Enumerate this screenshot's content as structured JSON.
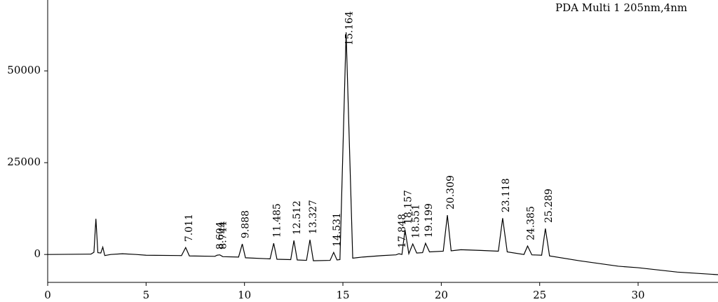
{
  "chart_data": {
    "type": "line",
    "legend_text": "PDA Multi 1 205nm,4nm",
    "color": "#000000",
    "x": [
      0,
      2.2,
      2.35,
      2.45,
      2.55,
      2.7,
      2.8,
      2.9,
      3.2,
      3.8,
      4.5,
      5,
      6.8,
      7.011,
      7.2,
      8.5,
      8.604,
      8.744,
      8.9,
      9.7,
      9.888,
      10.05,
      11.3,
      11.485,
      11.65,
      12.35,
      12.512,
      12.68,
      13.15,
      13.327,
      13.5,
      14.35,
      14.531,
      14.7,
      14.85,
      15.164,
      15.5,
      16,
      17,
      17.7,
      17.848,
      18.0,
      18.157,
      18.35,
      18.551,
      18.75,
      19.05,
      19.199,
      19.4,
      20.1,
      20.309,
      20.5,
      21,
      22,
      22.9,
      23.118,
      23.35,
      24.2,
      24.385,
      24.6,
      25.1,
      25.289,
      25.5,
      27,
      29,
      30,
      32,
      34.06
    ],
    "values": [
      0,
      100,
      600,
      9700,
      500,
      400,
      2000,
      -300,
      0,
      200,
      0,
      -200,
      -300,
      1900,
      -400,
      -500,
      -200,
      -100,
      -600,
      -700,
      2860,
      -900,
      -1200,
      3050,
      -1300,
      -1400,
      3800,
      -1500,
      -1600,
      4000,
      -1700,
      -1600,
      570,
      -1500,
      -1400,
      60500,
      -1000,
      -700,
      -300,
      -100,
      200,
      0,
      6700,
      200,
      2860,
      400,
      500,
      3050,
      700,
      900,
      10700,
      1000,
      1300,
      1100,
      900,
      9900,
      700,
      0,
      2300,
      -100,
      -200,
      7060,
      -400,
      -1700,
      -3200,
      -3600,
      -4800,
      -5500
    ],
    "peaks": [
      {
        "label": "7.011",
        "x": 7.011,
        "y": 1900
      },
      {
        "label": "8.604",
        "x": 8.604,
        "y": -200
      },
      {
        "label": "8.744",
        "x": 8.744,
        "y": -100
      },
      {
        "label": "9.888",
        "x": 9.888,
        "y": 2860
      },
      {
        "label": "11.485",
        "x": 11.485,
        "y": 3050
      },
      {
        "label": "12.512",
        "x": 12.512,
        "y": 3800
      },
      {
        "label": "13.327",
        "x": 13.327,
        "y": 4000
      },
      {
        "label": "14.531",
        "x": 14.531,
        "y": 570
      },
      {
        "label": "15.164",
        "x": 15.164,
        "y": 60500
      },
      {
        "label": "17.848",
        "x": 17.848,
        "y": 200
      },
      {
        "label": "18.157",
        "x": 18.157,
        "y": 6700
      },
      {
        "label": "18.551",
        "x": 18.551,
        "y": 2860
      },
      {
        "label": "19.199",
        "x": 19.199,
        "y": 3050
      },
      {
        "label": "20.309",
        "x": 20.309,
        "y": 10700
      },
      {
        "label": "23.118",
        "x": 23.118,
        "y": 9900
      },
      {
        "label": "24.385",
        "x": 24.385,
        "y": 2300
      },
      {
        "label": "25.289",
        "x": 25.289,
        "y": 7060
      }
    ],
    "xlim": [
      0,
      34.06
    ],
    "ylim": [
      -7600,
      69300
    ],
    "xticks": [
      0,
      5,
      10,
      15,
      20,
      25,
      30
    ],
    "yticks": [
      0,
      25000,
      50000
    ]
  }
}
